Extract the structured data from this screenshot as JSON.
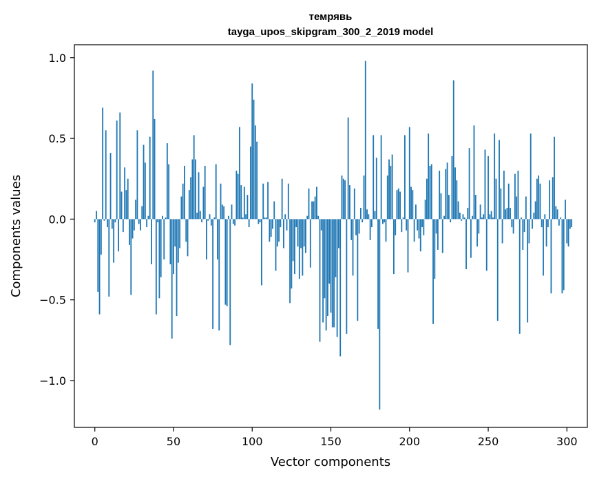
{
  "chart_data": {
    "type": "bar",
    "title": "темрявь",
    "subtitle": "tayga_upos_skipgram_300_2_2019 model",
    "xlabel": "Vector components",
    "ylabel": "Components values",
    "xlim": [
      -13,
      313
    ],
    "ylim": [
      -1.29,
      1.08
    ],
    "xticks": [
      0,
      50,
      100,
      150,
      200,
      250,
      300
    ],
    "yticks": [
      -1.0,
      -0.5,
      0.0,
      0.5,
      1.0
    ],
    "ytick_labels": [
      "−1.0",
      "−0.5",
      "0.0",
      "0.5",
      "1.0"
    ],
    "bar_color": "#1f77b4",
    "grid": false,
    "legend": "none",
    "values": [
      -0.02,
      0.05,
      -0.45,
      -0.59,
      -0.22,
      0.69,
      -0.01,
      0.55,
      -0.05,
      -0.48,
      0.41,
      -0.06,
      -0.27,
      -0.02,
      0.61,
      -0.2,
      0.66,
      0.17,
      -0.08,
      0.32,
      0.18,
      0.25,
      -0.16,
      -0.47,
      -0.12,
      -0.07,
      0.12,
      0.55,
      -0.03,
      -0.07,
      0.08,
      0.46,
      0.35,
      -0.05,
      0.02,
      0.51,
      -0.28,
      0.92,
      0.62,
      -0.59,
      -0.02,
      -0.49,
      -0.36,
      0.02,
      -0.25,
      0.01,
      0.47,
      0.34,
      -0.28,
      -0.74,
      -0.34,
      -0.17,
      -0.6,
      -0.27,
      -0.18,
      0.14,
      0.22,
      0.33,
      -0.14,
      -0.23,
      0.18,
      0.26,
      0.37,
      0.52,
      0.37,
      0.04,
      0.29,
      0.05,
      -0.02,
      0.2,
      0.33,
      -0.25,
      -0.01,
      0.03,
      -0.04,
      -0.68,
      0.01,
      0.34,
      -0.25,
      -0.69,
      0.22,
      0.09,
      0.08,
      -0.53,
      -0.54,
      0.02,
      -0.78,
      0.09,
      -0.03,
      -0.04,
      0.3,
      0.28,
      0.57,
      0.21,
      0.01,
      0.2,
      0.03,
      0.15,
      -0.05,
      0.45,
      0.84,
      0.74,
      0.58,
      0.48,
      -0.03,
      -0.02,
      -0.41,
      0.22,
      0.01,
      0.01,
      0.23,
      -0.14,
      -0.11,
      -0.06,
      0.11,
      -0.32,
      -0.17,
      -0.14,
      -0.05,
      0.25,
      -0.18,
      0.03,
      -0.07,
      0.22,
      -0.52,
      -0.43,
      -0.26,
      -0.34,
      -0.05,
      -0.17,
      -0.37,
      -0.18,
      -0.35,
      -0.17,
      -0.21,
      0.02,
      0.19,
      -0.3,
      0.11,
      0.11,
      0.14,
      0.2,
      0.02,
      -0.76,
      -0.07,
      -0.64,
      -0.49,
      -0.69,
      -0.6,
      -0.4,
      -0.58,
      -0.67,
      -0.67,
      -0.36,
      -0.73,
      -0.18,
      -0.85,
      0.27,
      0.25,
      0.24,
      -0.71,
      0.63,
      0.21,
      -0.13,
      -0.35,
      0.19,
      -0.1,
      -0.63,
      -0.09,
      0.07,
      -0.02,
      0.27,
      0.98,
      0.06,
      0.03,
      -0.13,
      -0.05,
      0.52,
      0.05,
      0.38,
      -0.68,
      -1.18,
      0.52,
      -0.03,
      -0.02,
      -0.14,
      0.27,
      0.37,
      0.33,
      0.4,
      -0.34,
      -0.1,
      0.18,
      0.19,
      0.17,
      -0.08,
      0.01,
      0.52,
      -0.07,
      -0.33,
      0.57,
      0.2,
      0.18,
      -0.14,
      0.09,
      -0.07,
      -0.12,
      -0.2,
      -0.05,
      -0.1,
      0.12,
      0.25,
      0.53,
      0.33,
      0.34,
      -0.65,
      -0.37,
      -0.09,
      -0.19,
      0.3,
      0.16,
      -0.21,
      0.02,
      0.31,
      0.35,
      0.15,
      -0.02,
      0.39,
      0.86,
      0.32,
      0.24,
      0.11,
      0.04,
      -0.01,
      0.03,
      0.01,
      -0.31,
      0.07,
      0.44,
      -0.24,
      0.02,
      0.58,
      0.15,
      -0.17,
      -0.09,
      0.09,
      0.01,
      0.03,
      0.43,
      -0.32,
      0.39,
      0.03,
      0.05,
      0.01,
      0.53,
      0.25,
      -0.63,
      0.49,
      0.19,
      -0.15,
      0.3,
      0.06,
      0.07,
      0.22,
      0.07,
      -0.05,
      -0.09,
      0.28,
      0.14,
      0.3,
      -0.71,
      0.01,
      -0.19,
      -0.08,
      0.14,
      -0.64,
      -0.15,
      0.53,
      -0.06,
      0.04,
      0.11,
      0.25,
      0.27,
      0.22,
      -0.05,
      -0.35,
      0.03,
      -0.17,
      -0.05,
      0.24,
      -0.46,
      0.26,
      0.51,
      0.08,
      0.06,
      -0.04,
      0.01,
      -0.46,
      -0.44,
      0.12,
      -0.15,
      -0.17,
      -0.06,
      -0.05
    ]
  }
}
